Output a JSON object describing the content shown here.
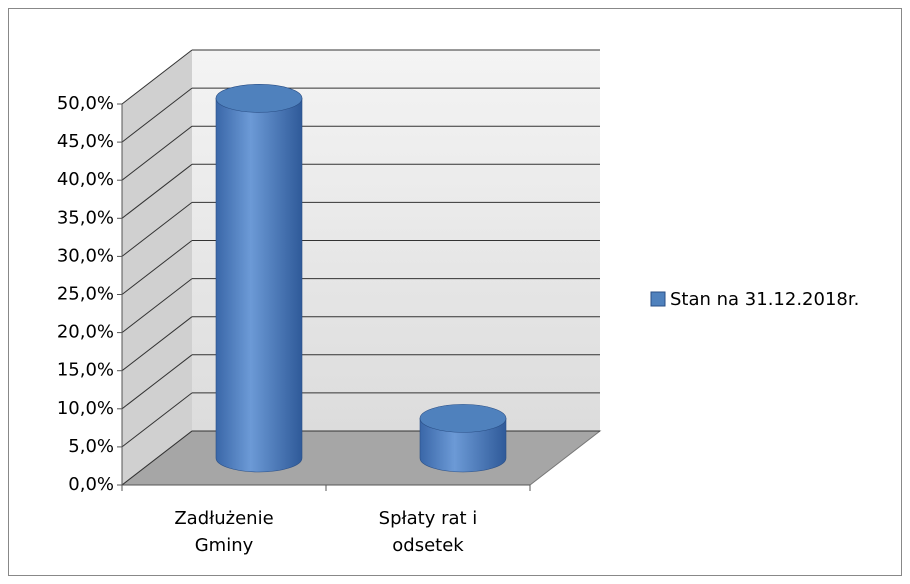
{
  "chart_data": {
    "type": "bar3d",
    "categories": [
      "Zadłużenie Gminy",
      "Spłaty rat i odsetek"
    ],
    "series": [
      {
        "name": "Stan na 31.12.2018r.",
        "color": "#4f81bd",
        "values": [
          47.2,
          5.2
        ]
      }
    ],
    "ylim": [
      0,
      50
    ],
    "yticks": [
      {
        "value": 0,
        "label": "0,0%"
      },
      {
        "value": 5,
        "label": "5,0%"
      },
      {
        "value": 10,
        "label": "10,0%"
      },
      {
        "value": 15,
        "label": "15,0%"
      },
      {
        "value": 20,
        "label": "20,0%"
      },
      {
        "value": 25,
        "label": "25,0%"
      },
      {
        "value": 30,
        "label": "30,0%"
      },
      {
        "value": 35,
        "label": "35,0%"
      },
      {
        "value": 40,
        "label": "40,0%"
      },
      {
        "value": 45,
        "label": "45,0%"
      },
      {
        "value": 50,
        "label": "50,0%"
      }
    ],
    "grid": true,
    "legend": "right"
  }
}
